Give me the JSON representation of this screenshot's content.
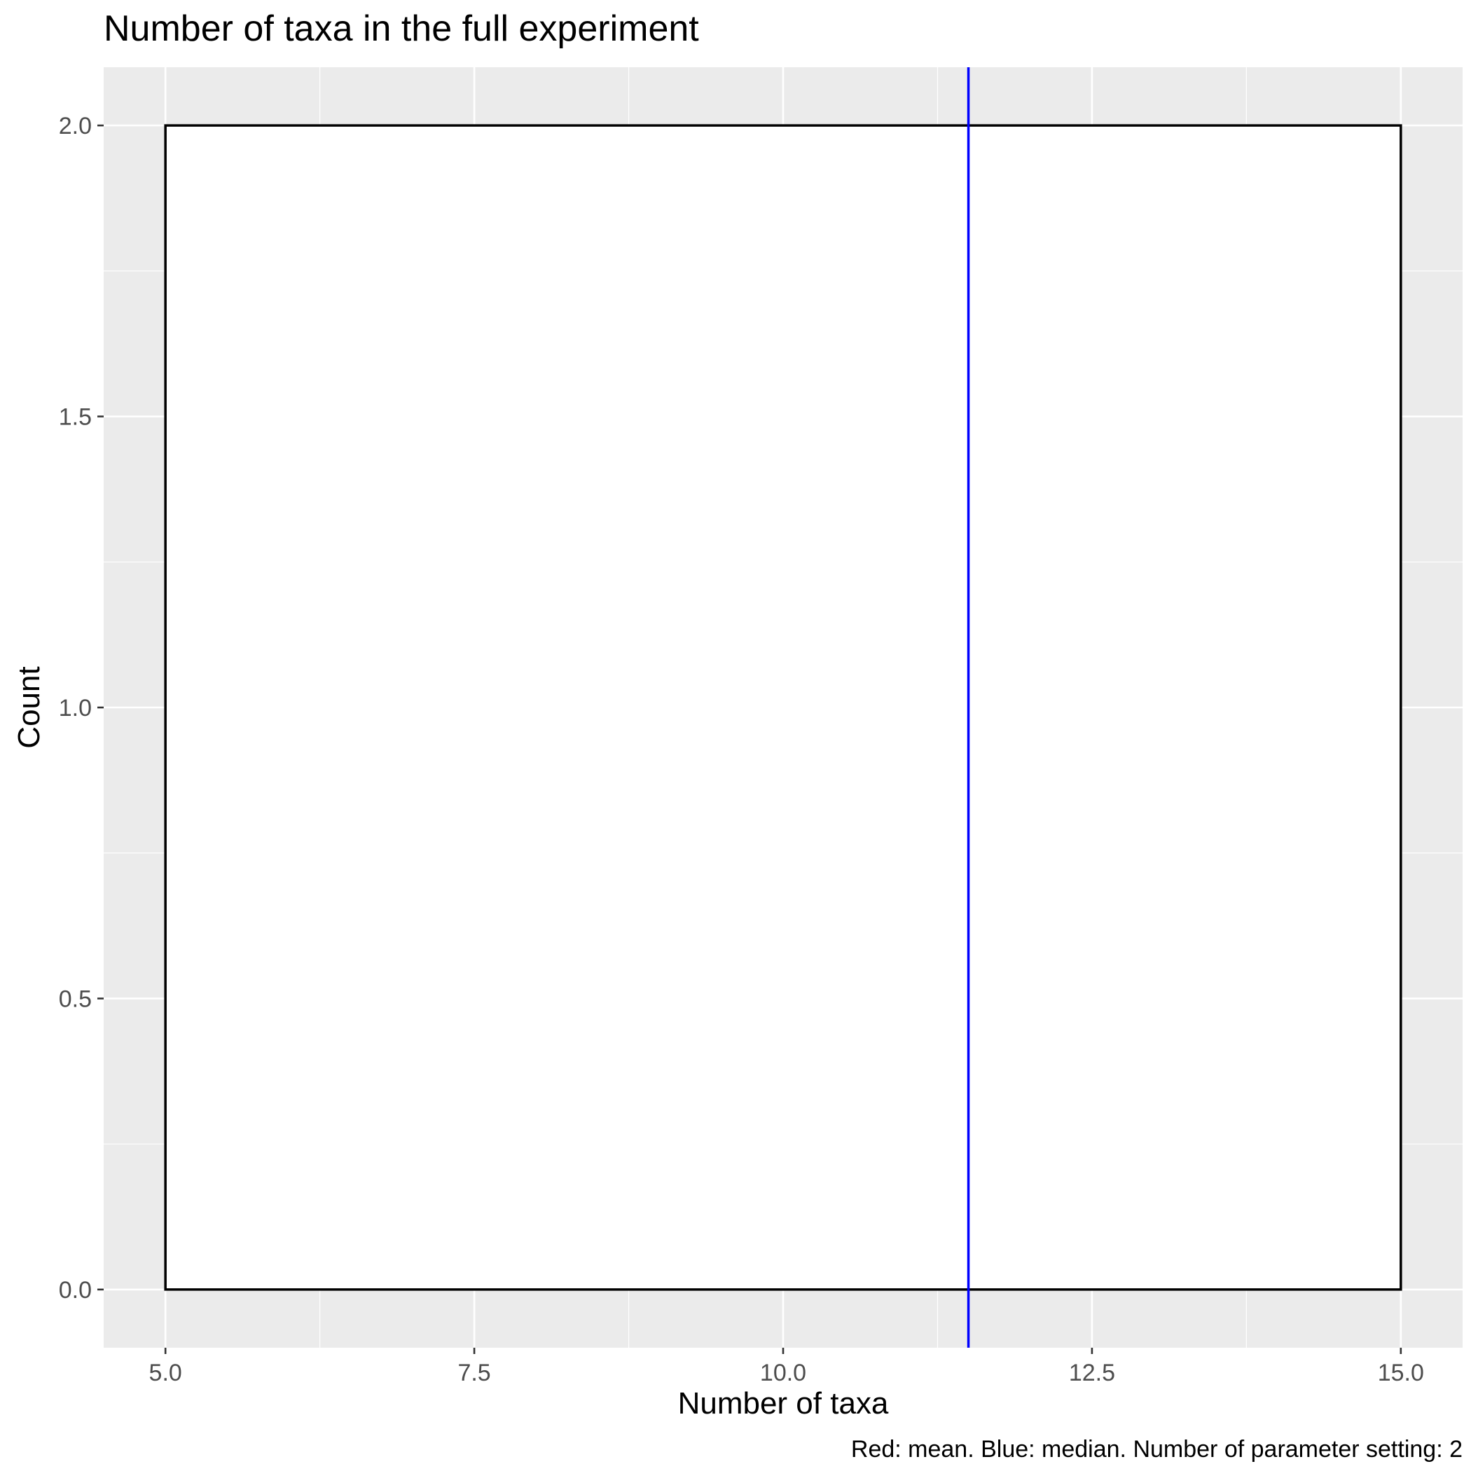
{
  "chart_data": {
    "type": "bar",
    "title": "Number of taxa in the full experiment",
    "xlabel": "Number of taxa",
    "ylabel": "Count",
    "caption": "Red: mean. Blue: median. Number of parameter setting: 2",
    "bins": [
      {
        "x_start": 5.0,
        "x_end": 15.0,
        "count": 2
      }
    ],
    "vlines": [
      {
        "name": "median",
        "x": 11.5,
        "color": "#0000ff"
      }
    ],
    "xlim": [
      4.5,
      15.5
    ],
    "ylim": [
      -0.1,
      2.1
    ],
    "x_ticks": [
      "5.0",
      "7.5",
      "10.0",
      "12.5",
      "15.0"
    ],
    "y_ticks": [
      "0.0",
      "0.5",
      "1.0",
      "1.5",
      "2.0"
    ],
    "grid": true,
    "colors": {
      "panel_background": "#ebebeb",
      "grid": "#ffffff",
      "bar_fill": "#ffffff",
      "bar_outline": "#000000",
      "tick_label": "#4d4d4d"
    }
  }
}
